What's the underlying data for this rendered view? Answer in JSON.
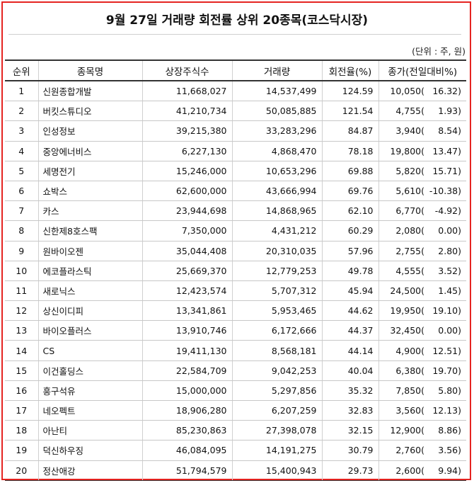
{
  "title": "9월 27일 거래량 회전률 상위 20종목(코스닥시장)",
  "unit_note": "(단위 : 주, 원)",
  "columns": [
    "순위",
    "종목명",
    "상장주식수",
    "거래량",
    "회전율(%)",
    "종가(전일대비%)"
  ],
  "rows": [
    {
      "rank": "1",
      "name": "신원종합개발",
      "listed_shares": "11,668,027",
      "volume": "14,537,499",
      "turnover": "124.59",
      "price": "10,050(",
      "change": "16.32)"
    },
    {
      "rank": "2",
      "name": "버킷스튜디오",
      "listed_shares": "41,210,734",
      "volume": "50,085,885",
      "turnover": "121.54",
      "price": "4,755(",
      "change": "1.93)"
    },
    {
      "rank": "3",
      "name": "인성정보",
      "listed_shares": "39,215,380",
      "volume": "33,283,296",
      "turnover": "84.87",
      "price": "3,940(",
      "change": "8.54)"
    },
    {
      "rank": "4",
      "name": "중앙에너비스",
      "listed_shares": "6,227,130",
      "volume": "4,868,470",
      "turnover": "78.18",
      "price": "19,800(",
      "change": "13.47)"
    },
    {
      "rank": "5",
      "name": "세명전기",
      "listed_shares": "15,246,000",
      "volume": "10,653,296",
      "turnover": "69.88",
      "price": "5,820(",
      "change": "15.71)"
    },
    {
      "rank": "6",
      "name": "쇼박스",
      "listed_shares": "62,600,000",
      "volume": "43,666,994",
      "turnover": "69.76",
      "price": "5,610(",
      "change": "-10.38)"
    },
    {
      "rank": "7",
      "name": "카스",
      "listed_shares": "23,944,698",
      "volume": "14,868,965",
      "turnover": "62.10",
      "price": "6,770(",
      "change": "-4.92)"
    },
    {
      "rank": "8",
      "name": "신한제8호스팩",
      "listed_shares": "7,350,000",
      "volume": "4,431,212",
      "turnover": "60.29",
      "price": "2,080(",
      "change": "0.00)"
    },
    {
      "rank": "9",
      "name": "원바이오젠",
      "listed_shares": "35,044,408",
      "volume": "20,310,035",
      "turnover": "57.96",
      "price": "2,755(",
      "change": "2.80)"
    },
    {
      "rank": "10",
      "name": "에코플라스틱",
      "listed_shares": "25,669,370",
      "volume": "12,779,253",
      "turnover": "49.78",
      "price": "4,555(",
      "change": "3.52)"
    },
    {
      "rank": "11",
      "name": "새로닉스",
      "listed_shares": "12,423,574",
      "volume": "5,707,312",
      "turnover": "45.94",
      "price": "24,500(",
      "change": "1.45)"
    },
    {
      "rank": "12",
      "name": "상신이디피",
      "listed_shares": "13,341,861",
      "volume": "5,953,465",
      "turnover": "44.62",
      "price": "19,950(",
      "change": "19.10)"
    },
    {
      "rank": "13",
      "name": "바이오플러스",
      "listed_shares": "13,910,746",
      "volume": "6,172,666",
      "turnover": "44.37",
      "price": "32,450(",
      "change": "0.00)"
    },
    {
      "rank": "14",
      "name": "CS",
      "listed_shares": "19,411,130",
      "volume": "8,568,181",
      "turnover": "44.14",
      "price": "4,900(",
      "change": "12.51)"
    },
    {
      "rank": "15",
      "name": "이건홀딩스",
      "listed_shares": "22,584,709",
      "volume": "9,042,253",
      "turnover": "40.04",
      "price": "6,380(",
      "change": "19.70)"
    },
    {
      "rank": "16",
      "name": "흥구석유",
      "listed_shares": "15,000,000",
      "volume": "5,297,856",
      "turnover": "35.32",
      "price": "7,850(",
      "change": "5.80)"
    },
    {
      "rank": "17",
      "name": "네오펙트",
      "listed_shares": "18,906,280",
      "volume": "6,207,259",
      "turnover": "32.83",
      "price": "3,560(",
      "change": "12.13)"
    },
    {
      "rank": "18",
      "name": "아난티",
      "listed_shares": "85,230,863",
      "volume": "27,398,078",
      "turnover": "32.15",
      "price": "12,900(",
      "change": "8.86)"
    },
    {
      "rank": "19",
      "name": "덕신하우징",
      "listed_shares": "46,084,095",
      "volume": "14,191,275",
      "turnover": "30.79",
      "price": "2,760(",
      "change": "3.56)"
    },
    {
      "rank": "20",
      "name": "정산애강",
      "listed_shares": "51,794,579",
      "volume": "15,400,943",
      "turnover": "29.73",
      "price": "2,600(",
      "change": "9.94)"
    }
  ],
  "colors": {
    "frame": "#e52421",
    "rule": "#333333"
  }
}
